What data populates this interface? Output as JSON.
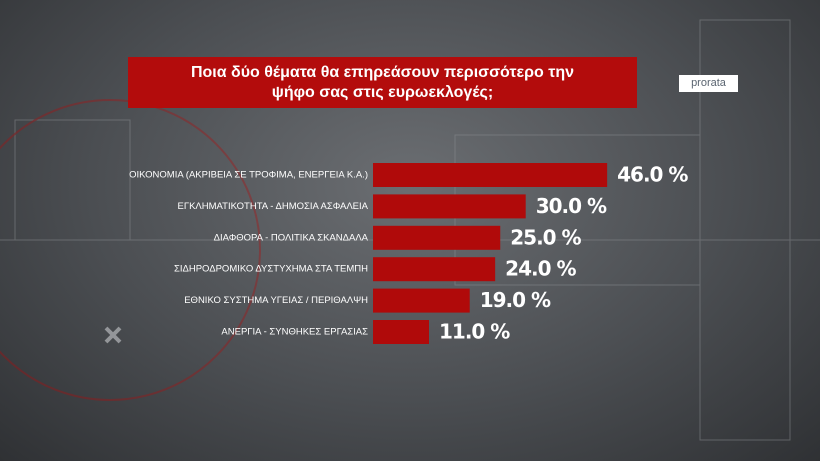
{
  "chart_data": {
    "type": "bar",
    "orientation": "horizontal",
    "title": "Ποια δύο θέματα θα επηρεάσουν περισσότερο την ψήφο σας στις ευρωεκλογές;",
    "logo": "prorata",
    "categories": [
      "ΟΙΚΟΝΟΜΙΑ (ΑΚΡΙΒΕΙΑ ΣΕ ΤΡΟΦΙΜΑ, ΕΝΕΡΓΕΙΑ Κ.Α.)",
      "ΕΓΚΛΗΜΑΤΙΚΟΤΗΤΑ - ΔΗΜΟΣΙΑ ΑΣΦΑΛΕΙΑ",
      "ΔΙΑΦΘΟΡΑ - ΠΟΛΙΤΙΚΑ ΣΚΑΝΔΑΛΑ",
      "ΣΙΔΗΡΟΔΡΟΜΙΚΟ ΔΥΣΤΥΧΗΜΑ ΣΤΑ ΤΕΜΠΗ",
      "ΕΘΝΙΚΟ ΣΥΣΤΗΜΑ ΥΓΕΙΑΣ / ΠΕΡΙΘΑΛΨΗ",
      "ΑΝΕΡΓΙΑ - ΣΥΝΘΗΚΕΣ ΕΡΓΑΣΙΑΣ"
    ],
    "values": [
      46,
      30,
      25,
      24,
      19,
      11
    ],
    "value_labels": [
      "46.0 %",
      "30.0 %",
      "25.0 %",
      "24.0 %",
      "19.0 %",
      "11.0 %"
    ],
    "color": "#b00a0a"
  }
}
